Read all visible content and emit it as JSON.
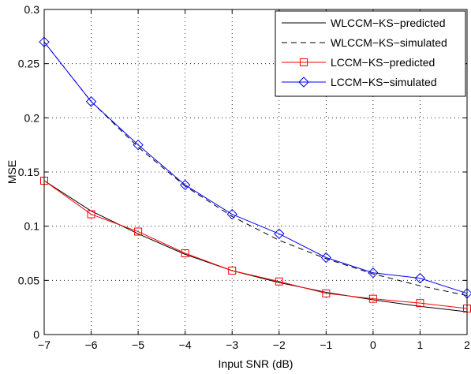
{
  "chart_data": {
    "type": "line",
    "title": "",
    "xlabel": "Input SNR (dB)",
    "ylabel": "MSE",
    "xlim": [
      -7,
      2
    ],
    "ylim": [
      0,
      0.3
    ],
    "grid": true,
    "legend_position": "top-right",
    "x_ticks": [
      -7,
      -6,
      -5,
      -4,
      -3,
      -2,
      -1,
      0,
      1,
      2
    ],
    "x_tick_labels": [
      "−7",
      "−6",
      "−5",
      "−4",
      "−3",
      "−2",
      "−1",
      "0",
      "1",
      "2"
    ],
    "y_ticks": [
      0,
      0.05,
      0.1,
      0.15,
      0.2,
      0.25,
      0.3
    ],
    "y_tick_labels": [
      "0",
      "0.05",
      "0.1",
      "0.15",
      "0.2",
      "0.25",
      "0.3"
    ],
    "x": [
      -7,
      -6,
      -5,
      -4,
      -3,
      -2,
      -1,
      0,
      1,
      2
    ],
    "series": [
      {
        "name": "WLCCM−KS−predicted",
        "color": "#000000",
        "dash": "solid",
        "marker": "none",
        "values": [
          0.142,
          0.114,
          0.093,
          0.074,
          0.059,
          0.048,
          0.039,
          0.032,
          0.026,
          0.021
        ]
      },
      {
        "name": "WLCCM−KS−simulated",
        "color": "#000000",
        "dash": "dashed",
        "marker": "none",
        "values": [
          0.27,
          0.215,
          0.173,
          0.137,
          0.109,
          0.087,
          0.07,
          0.056,
          0.045,
          0.036
        ]
      },
      {
        "name": "LCCM−KS−predicted",
        "color": "#ff0000",
        "dash": "solid",
        "marker": "square",
        "values": [
          0.142,
          0.111,
          0.095,
          0.075,
          0.059,
          0.049,
          0.038,
          0.033,
          0.029,
          0.024
        ]
      },
      {
        "name": "LCCM−KS−simulated",
        "color": "#0000ff",
        "dash": "solid",
        "marker": "diamond",
        "values": [
          0.27,
          0.215,
          0.175,
          0.138,
          0.111,
          0.093,
          0.071,
          0.057,
          0.052,
          0.038
        ]
      }
    ]
  }
}
